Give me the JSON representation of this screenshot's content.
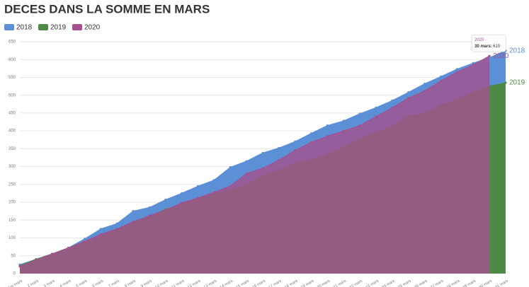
{
  "chart_data": {
    "type": "area",
    "title": "DECES DANS LA SOMME EN MARS",
    "categories": [
      "1er mars",
      "2 mars",
      "3 mars",
      "4 mars",
      "5 mars",
      "6 mars",
      "7 mars",
      "8 mars",
      "9 mars",
      "10 mars",
      "11 mars",
      "12 mars",
      "13 mars",
      "14 mars",
      "15 mars",
      "16 mars",
      "17 mars",
      "18 mars",
      "19 mars",
      "20 mars",
      "21 mars",
      "22 mars",
      "23 mars",
      "24 mars",
      "25 mars",
      "26 mars",
      "27 mars",
      "28 mars",
      "29 mars",
      "30 mars",
      "31 mars"
    ],
    "series": [
      {
        "name": "2018",
        "color": "#5b8fd6",
        "values": [
          25,
          40,
          55,
          72,
          97,
          125,
          140,
          175,
          185,
          207,
          225,
          245,
          262,
          298,
          315,
          338,
          352,
          370,
          393,
          415,
          428,
          448,
          465,
          485,
          508,
          532,
          552,
          573,
          590,
          605,
          625
        ]
      },
      {
        "name": "2019",
        "color": "#4e8a45",
        "values": [
          22,
          40,
          55,
          72,
          90,
          105,
          125,
          140,
          160,
          180,
          195,
          210,
          222,
          235,
          250,
          275,
          290,
          310,
          318,
          335,
          355,
          378,
          395,
          412,
          442,
          448,
          472,
          488,
          508,
          525,
          535
        ]
      },
      {
        "name": "2020",
        "color": "#a5508f",
        "values": [
          20,
          38,
          55,
          72,
          90,
          110,
          125,
          145,
          162,
          178,
          198,
          212,
          228,
          245,
          280,
          295,
          318,
          345,
          368,
          385,
          400,
          415,
          440,
          465,
          492,
          512,
          540,
          565,
          585,
          610,
          null
        ]
      }
    ],
    "ylim": [
      0,
      650
    ],
    "yticks": [
      0,
      50,
      100,
      150,
      200,
      250,
      300,
      350,
      400,
      450,
      500,
      550,
      600,
      650
    ],
    "grid": true,
    "tooltip": {
      "title": "2020",
      "label": "30 mars:",
      "value": 610
    }
  }
}
